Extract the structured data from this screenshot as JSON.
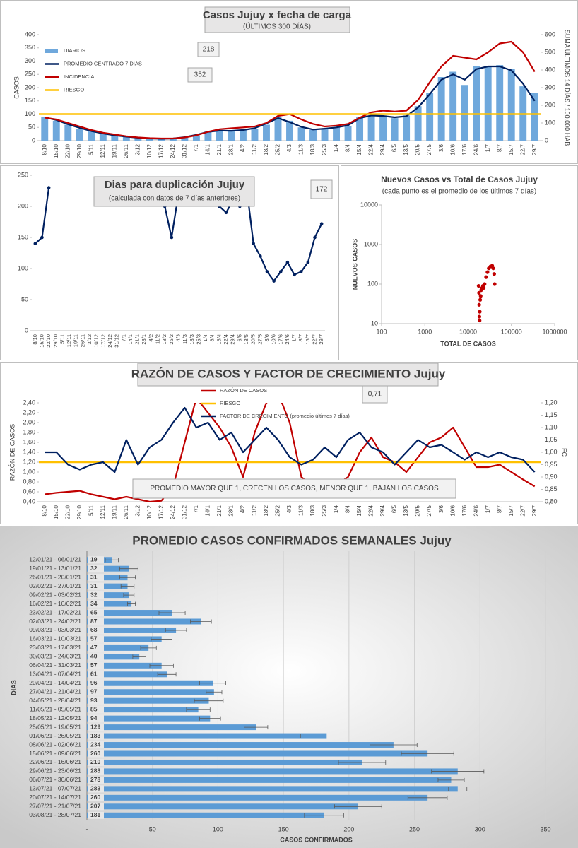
{
  "chart_data": [
    {
      "type": "combo",
      "title": "Casos Jujuy x fecha de carga",
      "subtitle": "(ÚLTIMOS 300 DÍAS)",
      "ylabel": "CASOS",
      "y2label": "SUMA  ÚLTIMOS 14 DÍAS / 100.000 HAB",
      "categories": [
        "8/10",
        "15/10",
        "22/10",
        "29/10",
        "5/11",
        "12/11",
        "19/11",
        "26/11",
        "3/12",
        "10/12",
        "17/12",
        "24/12",
        "31/12",
        "7/1",
        "14/1",
        "21/1",
        "28/1",
        "4/2",
        "11/2",
        "18/2",
        "25/2",
        "4/3",
        "11/3",
        "18/3",
        "25/3",
        "1/4",
        "8/4",
        "15/4",
        "22/4",
        "29/4",
        "6/5",
        "13/5",
        "20/5",
        "27/5",
        "3/6",
        "10/6",
        "17/6",
        "24/6",
        "1/7",
        "8/7",
        "15/7",
        "22/7",
        "29/7"
      ],
      "series": [
        {
          "name": "DIARIOS",
          "type": "bar",
          "color": "#6fa8dc",
          "values": [
            90,
            75,
            60,
            45,
            35,
            25,
            20,
            15,
            10,
            8,
            6,
            8,
            12,
            20,
            35,
            40,
            35,
            40,
            45,
            60,
            90,
            75,
            50,
            40,
            45,
            50,
            55,
            90,
            95,
            95,
            85,
            95,
            130,
            180,
            240,
            260,
            210,
            280,
            280,
            285,
            270,
            205,
            180
          ]
        },
        {
          "name": "PROMEDIO CENTRADO 7 DÍAS",
          "type": "line",
          "color": "#002060",
          "values": [
            88,
            78,
            62,
            48,
            36,
            27,
            20,
            15,
            11,
            8,
            7,
            8,
            13,
            22,
            33,
            38,
            37,
            40,
            47,
            65,
            85,
            70,
            52,
            42,
            45,
            50,
            58,
            85,
            95,
            93,
            88,
            92,
            125,
            175,
            230,
            250,
            230,
            270,
            280,
            280,
            265,
            215,
            150
          ]
        },
        {
          "name": "INCIDENCIA",
          "type": "line",
          "axis": "y2",
          "color": "#c00000",
          "values": [
            130,
            120,
            100,
            80,
            60,
            45,
            35,
            25,
            18,
            14,
            12,
            12,
            18,
            30,
            50,
            65,
            70,
            75,
            80,
            100,
            140,
            150,
            120,
            95,
            80,
            85,
            95,
            130,
            160,
            170,
            165,
            170,
            230,
            330,
            420,
            480,
            470,
            460,
            500,
            550,
            560,
            500,
            390
          ]
        },
        {
          "name": "RIESGO",
          "type": "hline",
          "color": "#ffc000",
          "value": 100
        }
      ],
      "ylim": [
        0,
        400
      ],
      "yticks": [
        0,
        50,
        100,
        150,
        200,
        250,
        300,
        350,
        400
      ],
      "y2lim": [
        0,
        600
      ],
      "y2ticks": [
        0,
        100,
        200,
        300,
        400,
        500,
        600
      ],
      "legend": "upper left",
      "annotations": [
        "218",
        "352"
      ]
    },
    {
      "type": "line",
      "title": "Dias para duplicación Jujuy",
      "subtitle": "(calculada con datos de 7 días anteriores)",
      "categories": [
        "8/10",
        "15/10",
        "22/10",
        "29/10",
        "5/11",
        "12/11",
        "19/11",
        "26/11",
        "3/12",
        "10/12",
        "17/12",
        "24/12",
        "31/12",
        "7/1",
        "14/1",
        "21/1",
        "28/1",
        "4/2",
        "11/2",
        "18/2",
        "25/2",
        "4/3",
        "11/3",
        "18/3",
        "25/3",
        "1/4",
        "8/4",
        "15/4",
        "22/4",
        "29/4",
        "6/5",
        "13/5",
        "20/5",
        "27/5",
        "3/6",
        "10/6",
        "17/6",
        "24/6",
        "1/7",
        "8/7",
        "15/7",
        "22/7",
        "29/7"
      ],
      "series": [
        {
          "type": "line",
          "color": "#002060",
          "markers": true,
          "values": [
            140,
            150,
            230,
            null,
            null,
            null,
            null,
            null,
            null,
            null,
            null,
            null,
            null,
            null,
            null,
            null,
            null,
            null,
            null,
            200,
            150,
            220,
            null,
            null,
            null,
            null,
            230,
            200,
            190,
            210,
            200,
            230,
            140,
            120,
            95,
            80,
            95,
            110,
            90,
            95,
            110,
            150,
            172
          ]
        }
      ],
      "ylim": [
        0,
        250
      ],
      "yticks": [
        0,
        50,
        100,
        150,
        200,
        250
      ],
      "annotations": [
        "172"
      ]
    },
    {
      "type": "scatter",
      "title": "Nuevos Casos vs Total de Casos Jujuy",
      "subtitle": "(cada punto es el promedio de los últimos 7 días)",
      "xlabel": "TOTAL DE CASOS",
      "ylabel": "NUEVOS  CASOS",
      "color": "#c00000",
      "xlog": true,
      "ylog": true,
      "x": [
        17500,
        17800,
        18000,
        18200,
        18400,
        18600,
        19000,
        19500,
        20000,
        21000,
        22000,
        23000,
        24000,
        26000,
        28000,
        30000,
        33000,
        36000,
        38000,
        40000,
        41000
      ],
      "values": [
        90,
        60,
        30,
        15,
        12,
        20,
        40,
        50,
        70,
        80,
        90,
        80,
        100,
        150,
        200,
        250,
        280,
        290,
        250,
        180,
        100
      ],
      "xlim": [
        100,
        1000000
      ],
      "xticks": [
        100,
        1000,
        10000,
        100000,
        1000000
      ],
      "ylim": [
        10,
        10000
      ],
      "yticks": [
        10,
        100,
        1000,
        10000
      ]
    },
    {
      "type": "combo",
      "title": "RAZÓN DE CASOS Y FACTOR DE CRECIMIENTO Jujuy",
      "ylabel": "RAZÓN DE CASOS",
      "y2label": "FC",
      "categories": [
        "8/10",
        "15/10",
        "22/10",
        "29/10",
        "5/11",
        "12/11",
        "19/11",
        "26/11",
        "3/12",
        "10/12",
        "17/12",
        "24/12",
        "31/12",
        "7/1",
        "14/1",
        "21/1",
        "28/1",
        "4/2",
        "11/2",
        "18/2",
        "25/2",
        "4/3",
        "11/3",
        "18/3",
        "25/3",
        "1/4",
        "8/4",
        "15/4",
        "22/4",
        "29/4",
        "6/5",
        "13/5",
        "20/5",
        "27/5",
        "3/6",
        "10/6",
        "17/6",
        "24/6",
        "1/7",
        "8/7",
        "15/7",
        "22/7",
        "29/7"
      ],
      "series": [
        {
          "name": "RAZÓN DE CASOS",
          "type": "line",
          "color": "#c00000",
          "values": [
            0.55,
            0.58,
            0.6,
            0.62,
            0.55,
            0.5,
            0.45,
            0.5,
            0.45,
            0.4,
            0.42,
            0.7,
            1.6,
            2.5,
            2.2,
            1.9,
            1.5,
            0.9,
            1.8,
            2.4,
            2.6,
            2.0,
            0.9,
            0.7,
            0.65,
            0.75,
            0.9,
            1.4,
            1.7,
            1.3,
            1.2,
            1.0,
            1.3,
            1.6,
            1.7,
            1.9,
            1.5,
            1.1,
            1.1,
            1.15,
            1.0,
            0.85,
            0.71
          ]
        },
        {
          "name": "RIESGO",
          "type": "hline",
          "color": "#ffc000",
          "value": 1.2
        },
        {
          "name": "FACTOR DE CRECIMIENTO (promedio últimos 7 días)",
          "type": "line",
          "axis": "y2",
          "color": "#002060",
          "values": [
            1.0,
            1.0,
            0.95,
            0.93,
            0.95,
            0.96,
            0.92,
            1.05,
            0.95,
            1.02,
            1.05,
            1.12,
            1.18,
            1.1,
            1.12,
            1.05,
            1.08,
            1.0,
            1.05,
            1.1,
            1.05,
            0.98,
            0.95,
            0.97,
            1.02,
            0.98,
            1.05,
            1.08,
            1.02,
            1.0,
            0.95,
            1.0,
            1.05,
            1.02,
            1.03,
            1.0,
            0.97,
            1.0,
            0.98,
            1.0,
            0.98,
            0.97,
            0.92
          ]
        }
      ],
      "ylim": [
        0.4,
        2.4
      ],
      "yticks": [
        {
          "value": 0.4,
          "label": "0,40"
        },
        {
          "value": 0.6,
          "label": "0,60"
        },
        {
          "value": 0.8,
          "label": "0,80"
        },
        {
          "value": 1.0,
          "label": "1,00"
        },
        {
          "value": 1.2,
          "label": "1,20"
        },
        {
          "value": 1.4,
          "label": "1,40"
        },
        {
          "value": 1.6,
          "label": "1,60"
        },
        {
          "value": 1.8,
          "label": "1,80"
        },
        {
          "value": 2.0,
          "label": "2,00"
        },
        {
          "value": 2.2,
          "label": "2,20"
        },
        {
          "value": 2.4,
          "label": "2,40"
        }
      ],
      "y2lim": [
        0.8,
        1.2
      ],
      "y2ticks": [
        {
          "value": 0.8,
          "label": "0,80"
        },
        {
          "value": 0.85,
          "label": "0,85"
        },
        {
          "value": 0.9,
          "label": "0,90"
        },
        {
          "value": 0.95,
          "label": "0,95"
        },
        {
          "value": 1.0,
          "label": "1,00"
        },
        {
          "value": 1.05,
          "label": "1,05"
        },
        {
          "value": 1.1,
          "label": "1,10"
        },
        {
          "value": 1.15,
          "label": "1,15"
        },
        {
          "value": 1.2,
          "label": "1,20"
        }
      ],
      "legend": "upper center",
      "annotations": [
        "0,71",
        "PROMEDIO MAYOR QUE 1, CRECEN LOS CASOS, MENOR QUE 1, BAJAN LOS CASOS"
      ]
    },
    {
      "type": "hbar",
      "title": "PROMEDIO CASOS CONFIRMADOS SEMANALES Jujuy",
      "xlabel": "CASOS CONFIRMADOS",
      "ylabel": "DIAS",
      "color": "#5b9bd5",
      "categories": [
        "12/01/21 - 06/01/21",
        "19/01/21 - 13/01/21",
        "26/01/21 - 20/01/21",
        "02/02/21 - 27/01/21",
        "09/02/21 - 03/02/21",
        "16/02/21 - 10/02/21",
        "23/02/21 - 17/02/21",
        "02/03/21 - 24/02/21",
        "09/03/21 - 03/03/21",
        "16/03/21 - 10/03/21",
        "23/03/21 - 17/03/21",
        "30/03/21 - 24/03/21",
        "06/04/21 - 31/03/21",
        "13/04/21 - 07/04/21",
        "20/04/21 - 14/04/21",
        "27/04/21 - 21/04/21",
        "04/05/21 - 28/04/21",
        "11/05/21 - 05/05/21",
        "18/05/21 - 12/05/21",
        "25/05/21 - 19/05/21",
        "01/06/21 - 26/05/21",
        "08/06/21 - 02/06/21",
        "15/06/21 - 09/06/21",
        "22/06/21 - 16/06/21",
        "29/06/21 - 23/06/21",
        "06/07/21 - 30/06/21",
        "13/07/21 - 07/07/21",
        "20/07/21 - 14/07/21",
        "27/07/21 - 21/07/21",
        "03/08/21 - 28/07/21"
      ],
      "values": [
        19,
        32,
        31,
        31,
        32,
        34,
        65,
        87,
        68,
        57,
        47,
        40,
        57,
        61,
        96,
        97,
        93,
        85,
        94,
        129,
        183,
        234,
        260,
        210,
        283,
        278,
        283,
        260,
        207,
        181
      ],
      "errors": [
        5,
        7,
        6,
        5,
        4,
        3,
        10,
        8,
        8,
        8,
        6,
        5,
        9,
        7,
        10,
        6,
        11,
        9,
        8,
        9,
        20,
        18,
        20,
        18,
        20,
        10,
        7,
        15,
        18,
        15
      ],
      "xlim": [
        0,
        350
      ],
      "xticks": [
        {
          "value": 0,
          "label": "-"
        },
        50,
        100,
        150,
        200,
        250,
        300,
        350
      ],
      "grid": true
    }
  ]
}
